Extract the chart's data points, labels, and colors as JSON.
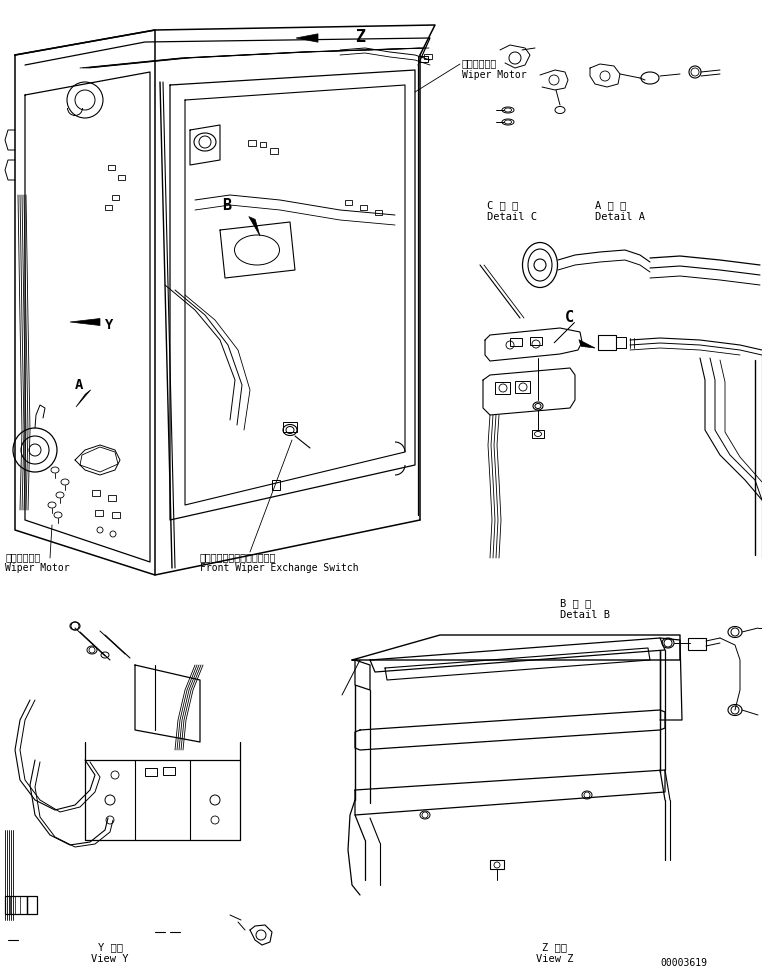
{
  "background_color": "#ffffff",
  "line_color": "#000000",
  "fig_width": 7.62,
  "fig_height": 9.69,
  "dpi": 100,
  "labels": {
    "wiper_motor_top_jp": "ワイパモータ",
    "wiper_motor_top_en": "Wiper Motor",
    "wiper_motor_bottom_jp": "ワイパモータ",
    "wiper_motor_bottom_en": "Wiper Motor",
    "front_wiper_jp": "フロントワイパ切換スイッチ",
    "front_wiper_en": "Front Wiper Exchange Switch",
    "detail_c_jp": "C 詳 細",
    "detail_c_en": "Detail C",
    "detail_a_jp": "A 詳 細",
    "detail_a_en": "Detail A",
    "detail_b_jp": "B 詳 細",
    "detail_b_en": "Detail B",
    "view_y_jp": "Y 　視",
    "view_y_en": "View Y",
    "view_z_jp": "Z 　視",
    "view_z_en": "View Z",
    "label_z": "Z",
    "label_b": "B",
    "label_y": "Y",
    "label_a": "A",
    "label_c": "C",
    "part_number": "00003619"
  },
  "font_sizes": {
    "title": 9,
    "label": 7,
    "small": 6,
    "part_number": 7
  }
}
